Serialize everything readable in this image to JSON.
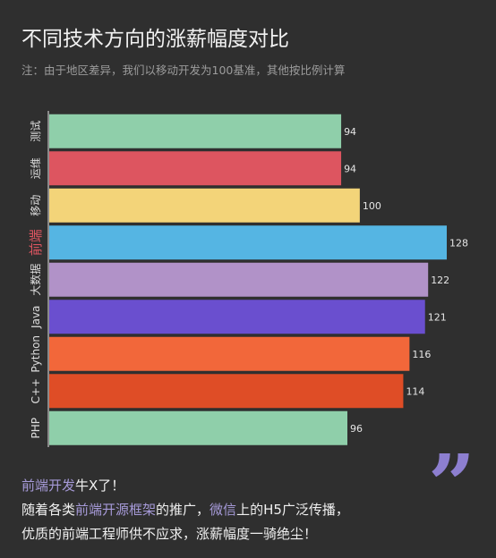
{
  "title": "不同技术方向的涨薪幅度对比",
  "subtitle": "注：由于地区差异，我们以移动开发为100基准，其他按比例计算",
  "chart_data": {
    "type": "bar",
    "orientation": "horizontal",
    "title": "不同技术方向的涨薪幅度对比",
    "subtitle": "注：由于地区差异，我们以移动开发为100基准，其他按比例计算",
    "categories": [
      "测试",
      "运维",
      "移动",
      "前端",
      "大数据",
      "Java",
      "Python",
      "C++",
      "PHP"
    ],
    "values": [
      94,
      94,
      100,
      128,
      122,
      121,
      116,
      114,
      96
    ],
    "colors": [
      "#8fcfaa",
      "#dd5560",
      "#f3d479",
      "#55b5e3",
      "#b192c8",
      "#6a4fcf",
      "#f2673a",
      "#df4d26",
      "#8fcfaa"
    ],
    "highlight_category": "前端",
    "highlight_color": "#dd5560",
    "axis_color": "#c8c8c8",
    "grid": false,
    "legend": "none",
    "xlim": [
      0,
      128
    ]
  },
  "footer": {
    "line1_a": "前端开发",
    "line1_b": "牛X了！",
    "line2_a": "随着各类",
    "line2_b": "前端开源框架",
    "line2_c": "的推广，",
    "line2_d": "微信",
    "line2_e": "上的H5广泛传播，",
    "line3": "优质的前端工程师供不应求，涨薪幅度一骑绝尘！"
  },
  "quote_mark": "”"
}
